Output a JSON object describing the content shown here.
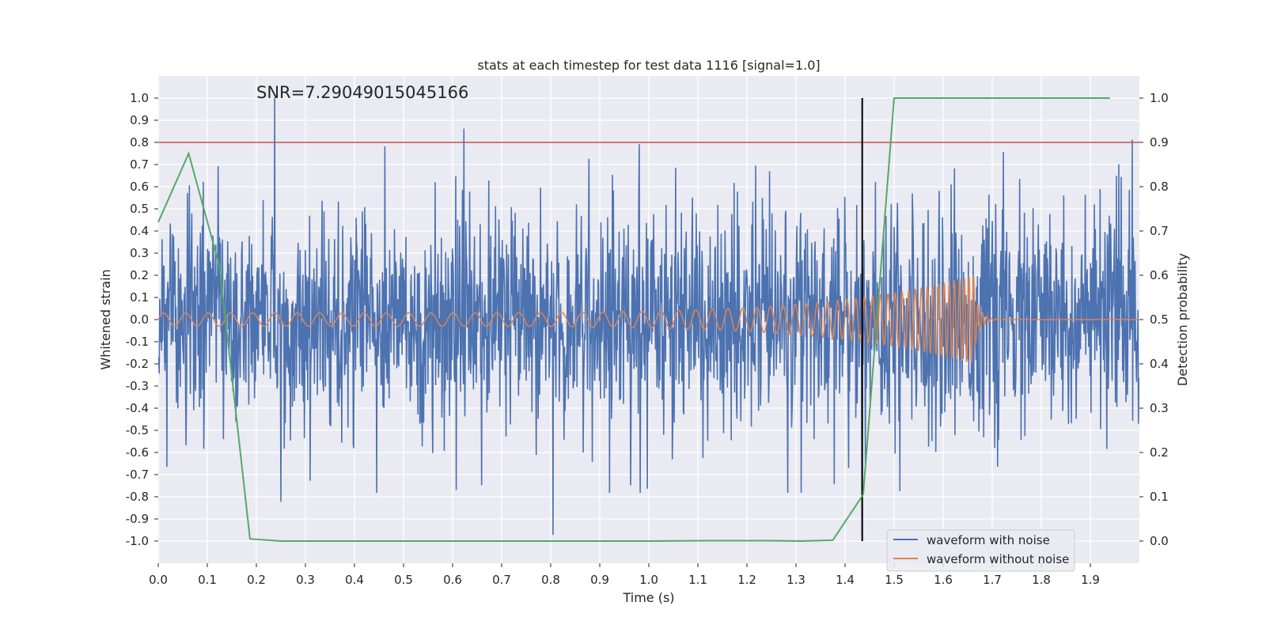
{
  "chart_data": {
    "type": "line",
    "title": "stats at each timestep for test data 1116 [signal=1.0]",
    "annotation": "SNR=7.29049015045166",
    "xlabel": "Time (s)",
    "ylabel": "Whitened strain",
    "ylabel_right": "Detection probability",
    "xlim": [
      0.0,
      2.0
    ],
    "ylim": [
      -1.1,
      1.1
    ],
    "ylim_right": [
      -0.05,
      1.05
    ],
    "x_ticks": [
      "0.0",
      "0.1",
      "0.2",
      "0.3",
      "0.4",
      "0.5",
      "0.6",
      "0.7",
      "0.8",
      "0.9",
      "1.0",
      "1.1",
      "1.2",
      "1.3",
      "1.4",
      "1.5",
      "1.6",
      "1.7",
      "1.8",
      "1.9"
    ],
    "y_ticks": [
      "1.0",
      "0.9",
      "0.8",
      "0.7",
      "0.6",
      "0.5",
      "0.4",
      "0.3",
      "0.2",
      "0.1",
      "0.0",
      "-0.1",
      "-0.2",
      "-0.3",
      "-0.4",
      "-0.5",
      "-0.6",
      "-0.7",
      "-0.8",
      "-0.9",
      "-1.0"
    ],
    "y_ticks_right": [
      "1.0",
      "0.9",
      "0.8",
      "0.7",
      "0.6",
      "0.5",
      "0.4",
      "0.3",
      "0.2",
      "0.1",
      "0.0"
    ],
    "threshold": {
      "axis": "right",
      "value": 0.9,
      "color": "#c44e52"
    },
    "event_marker": {
      "x": 1.435,
      "y_range": [
        -1.0,
        1.0
      ],
      "color": "#000000"
    },
    "legend": {
      "position": "lower-right",
      "entries": [
        {
          "label": "waveform with noise",
          "color": "#4c72b0"
        },
        {
          "label": "waveform without noise",
          "color": "#dd8452"
        }
      ]
    },
    "series": [
      {
        "name": "waveform with noise",
        "axis": "left",
        "color": "#4c72b0",
        "kind": "gaussian noise, std ~0.25, range -1.0 to 1.0",
        "peaks": [
          [
            0.237,
            1.0
          ],
          [
            0.623,
            0.86
          ],
          [
            0.98,
            0.79
          ],
          [
            1.985,
            0.81
          ],
          [
            0.805,
            -0.97
          ],
          [
            0.25,
            -0.82
          ],
          [
            0.445,
            -0.78
          ],
          [
            1.435,
            -0.97
          ]
        ]
      },
      {
        "name": "waveform without noise",
        "axis": "left",
        "color": "#dd8452",
        "kind": "chirp",
        "chirp": {
          "start": 0.0,
          "merger": 1.665,
          "amplitude_start": 0.03,
          "amplitude_peak": 0.2,
          "freq_start_hz": 22,
          "freq_end_hz": 110
        }
      },
      {
        "name": "detection probability",
        "axis": "right",
        "color": "#55a868",
        "x": [
          0.0,
          0.062,
          0.125,
          0.187,
          0.25,
          0.5,
          0.75,
          1.0,
          1.125,
          1.25,
          1.31,
          1.375,
          1.437,
          1.5,
          1.94
        ],
        "y": [
          0.72,
          0.875,
          0.62,
          0.005,
          0.0,
          0.0,
          0.0,
          0.0,
          0.001,
          0.001,
          0.0,
          0.002,
          0.105,
          1.0,
          1.0
        ]
      }
    ]
  }
}
